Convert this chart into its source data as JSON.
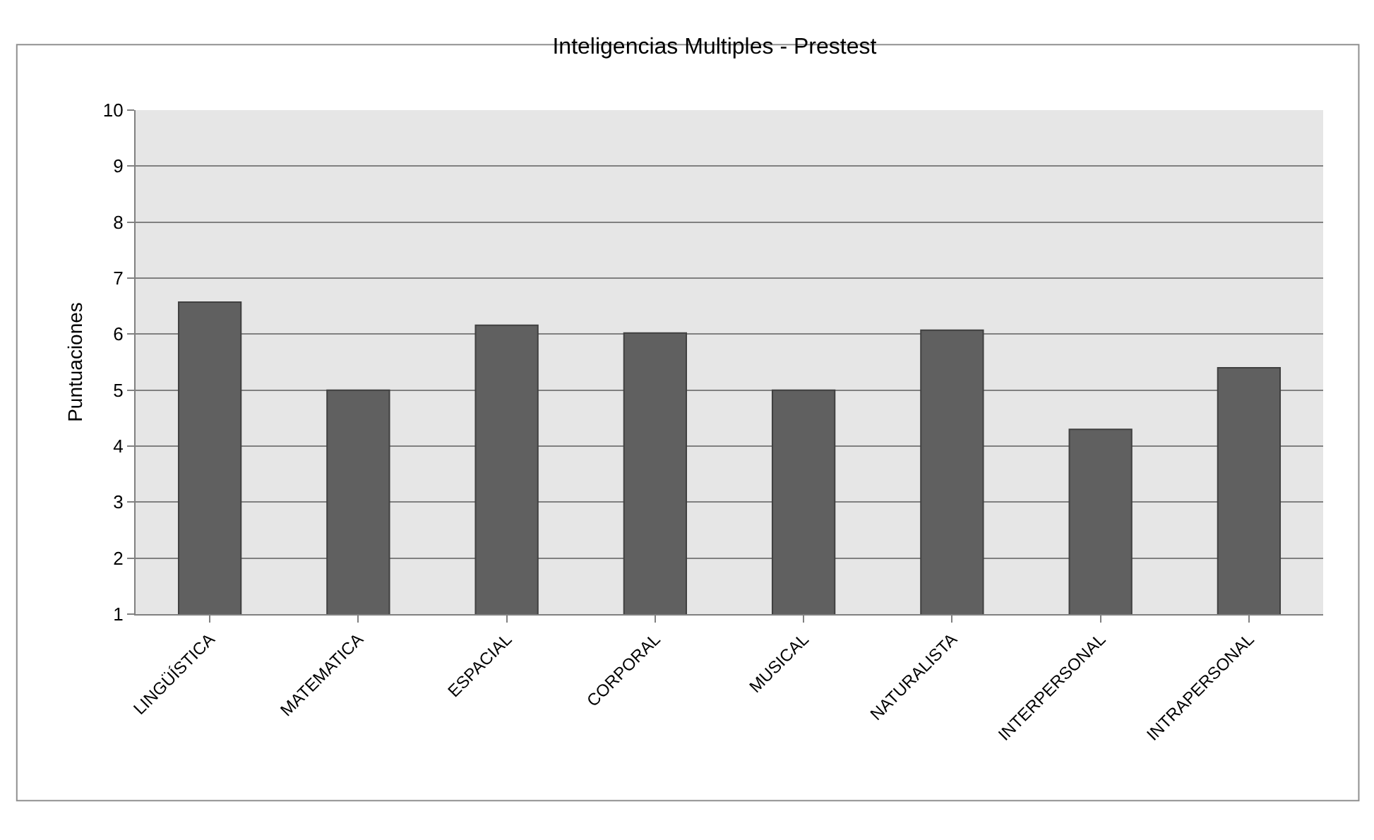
{
  "chart_data": {
    "type": "bar",
    "title": "Inteligencias Multiples - Prestest",
    "ylabel": "Puntuaciones",
    "categories": [
      "LINGÜÍSTICA",
      "MATEMATICA",
      "ESPACIAL",
      "CORPORAL",
      "MUSICAL",
      "NATURALISTA",
      "INTERPERSONAL",
      "INTRAPERSONAL"
    ],
    "values": [
      6.57,
      5.0,
      6.16,
      6.02,
      5.0,
      6.07,
      4.3,
      5.4
    ],
    "color": "#606060",
    "ylim": [
      1,
      10
    ],
    "yticks": [
      1,
      2,
      3,
      4,
      5,
      6,
      7,
      8,
      9,
      10
    ],
    "grid": "y"
  }
}
